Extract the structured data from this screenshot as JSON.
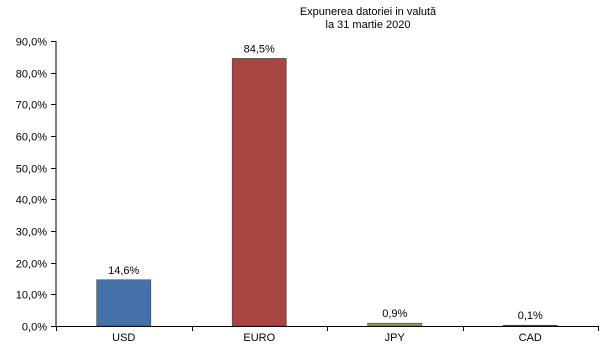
{
  "chart_data": {
    "type": "bar",
    "title_lines": [
      "Expunerea datoriei in valută",
      "la 31 martie 2020"
    ],
    "categories": [
      "USD",
      "EURO",
      "JPY",
      "CAD"
    ],
    "values": [
      14.6,
      84.5,
      0.9,
      0.1
    ],
    "data_labels": [
      "14,6%",
      "84,5%",
      "0,9%",
      "0,1%"
    ],
    "bar_colors": [
      "#4472a8",
      "#a84442",
      "#87a241",
      "#6a4f8f"
    ],
    "ylim": [
      0,
      90
    ],
    "yticks": [
      0,
      10,
      20,
      30,
      40,
      50,
      60,
      70,
      80,
      90
    ],
    "ytick_labels": [
      "0,0%",
      "10,0%",
      "20,0%",
      "30,0%",
      "40,0%",
      "50,0%",
      "60,0%",
      "70,0%",
      "80,0%",
      "90,0%"
    ],
    "grid": false,
    "xlabel": "",
    "ylabel": ""
  }
}
